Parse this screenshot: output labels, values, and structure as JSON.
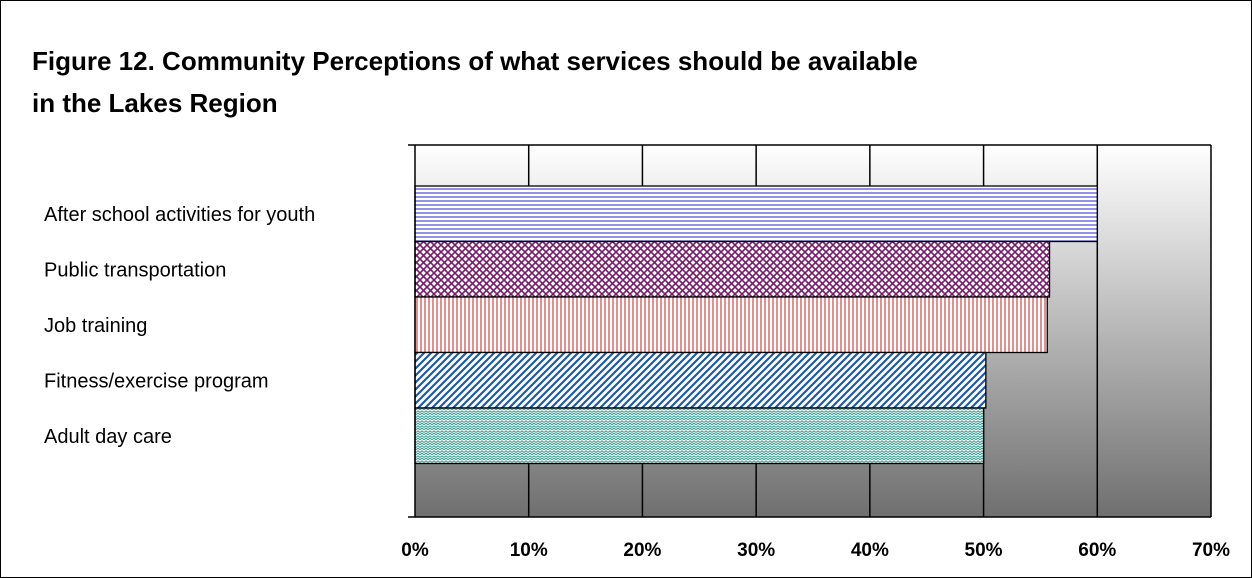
{
  "chart_data": {
    "type": "bar",
    "orientation": "horizontal",
    "title": "Figure 12.  Community Perceptions of what services should be available in the Lakes Region",
    "categories": [
      "After school activities for youth",
      "Public transportation",
      "Job training",
      "Fitness/exercise program",
      "Adult day care"
    ],
    "values": [
      60,
      55.8,
      55.6,
      50.2,
      50
    ],
    "value_unit": "%",
    "xlim": [
      0,
      70
    ],
    "x_ticks": [
      "0%",
      "10%",
      "20%",
      "30%",
      "40%",
      "50%",
      "60%",
      "70%"
    ],
    "grid": true,
    "legend": "none",
    "colors": {
      "after_school": "#4b4bd6",
      "public_transportation": "#7a1a6e",
      "job_training": "#d04545",
      "fitness": "#1f5aa8",
      "adult_day_care": "#2f9a8e",
      "gradient_top": "#ffffff",
      "gradient_bottom": "#6f6f6f"
    }
  }
}
